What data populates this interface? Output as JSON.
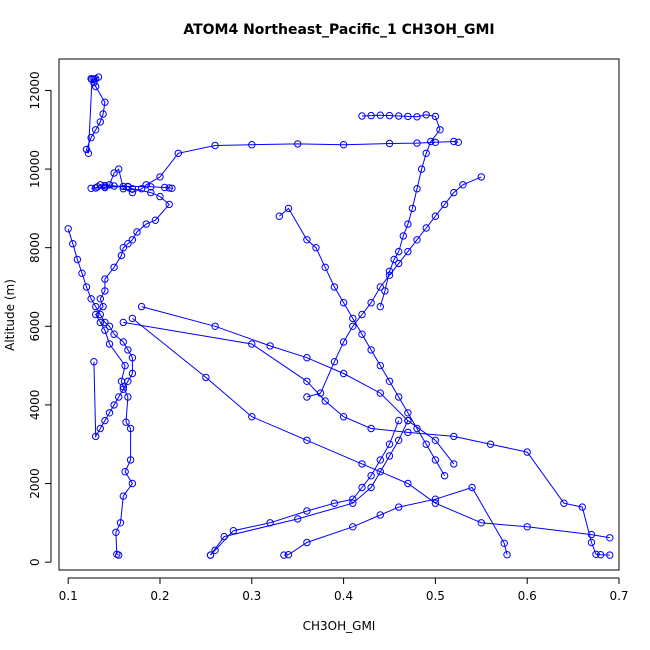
{
  "chart_data": {
    "type": "line",
    "title": "ATOM4 Northeast_Pacific_1 CH3OH_GMI",
    "xlabel": "CH3OH_GMI",
    "ylabel": "Altitude (m)",
    "xlim": [
      0.09,
      0.7
    ],
    "ylim": [
      -200,
      12800
    ],
    "x_ticks": [
      "0.1",
      "0.2",
      "0.3",
      "0.4",
      "0.5",
      "0.6",
      "0.7"
    ],
    "y_ticks": [
      "0",
      "2000",
      "4000",
      "6000",
      "8000",
      "10000",
      "12000"
    ],
    "x_tick_values": [
      0.1,
      0.2,
      0.3,
      0.4,
      0.5,
      0.6,
      0.7
    ],
    "y_tick_values": [
      0,
      2000,
      4000,
      6000,
      8000,
      10000,
      12000
    ],
    "series_color": "#0000ff",
    "series": [
      {
        "x": [
          0.155,
          0.153,
          0.152,
          0.157,
          0.16,
          0.17,
          0.162,
          0.168,
          0.168,
          0.163,
          0.165,
          0.16,
          0.158,
          0.162,
          0.145,
          0.14,
          0.135,
          0.13,
          0.138,
          0.135,
          0.14,
          0.14,
          0.15,
          0.158,
          0.16,
          0.165,
          0.17,
          0.175,
          0.185,
          0.195,
          0.21,
          0.2,
          0.19,
          0.17,
          0.165,
          0.16,
          0.15,
          0.14,
          0.135,
          0.132,
          0.13,
          0.14,
          0.165,
          0.19,
          0.205,
          0.21,
          0.213
        ],
        "y": [
          180,
          200,
          760,
          1000,
          1680,
          2000,
          2300,
          2600,
          3400,
          3560,
          4200,
          4460,
          4600,
          5000,
          5550,
          5900,
          6100,
          6300,
          6500,
          6700,
          6900,
          7200,
          7500,
          7800,
          8000,
          8100,
          8200,
          8400,
          8600,
          8700,
          9100,
          9300,
          9400,
          9500,
          9550,
          9560,
          9570,
          9580,
          9600,
          9550,
          9520,
          9540,
          9560,
          9550,
          9530,
          9520,
          9510
        ]
      },
      {
        "x": [
          0.125,
          0.13,
          0.14,
          0.145,
          0.15,
          0.155,
          0.16,
          0.17,
          0.18,
          0.185,
          0.2,
          0.22,
          0.26,
          0.3,
          0.35,
          0.4,
          0.45,
          0.48,
          0.5,
          0.52,
          0.525
        ],
        "y": [
          9510,
          9520,
          9530,
          9600,
          9900,
          10000,
          9500,
          9400,
          9500,
          9600,
          9800,
          10400,
          10600,
          10620,
          10640,
          10620,
          10650,
          10660,
          10680,
          10700,
          10680
        ]
      },
      {
        "x": [
          0.125,
          0.128,
          0.13,
          0.14,
          0.138,
          0.135,
          0.13,
          0.125,
          0.12,
          0.122,
          0.126,
          0.128,
          0.13,
          0.133
        ],
        "y": [
          12300,
          12200,
          12100,
          11700,
          11400,
          11200,
          11000,
          10800,
          10500,
          10400,
          12280,
          12290,
          12300,
          12340
        ]
      },
      {
        "x": [
          0.1,
          0.105,
          0.11,
          0.115,
          0.12,
          0.125,
          0.13,
          0.135,
          0.14,
          0.145,
          0.15,
          0.16,
          0.165,
          0.17,
          0.17,
          0.165,
          0.16,
          0.155,
          0.15,
          0.145,
          0.14,
          0.135,
          0.13,
          0.128
        ],
        "y": [
          8480,
          8100,
          7700,
          7350,
          7000,
          6700,
          6500,
          6300,
          6100,
          6000,
          5800,
          5600,
          5400,
          5200,
          4800,
          4600,
          4400,
          4200,
          4000,
          3800,
          3600,
          3400,
          3200,
          5100
        ]
      },
      {
        "x": [
          0.18,
          0.26,
          0.32,
          0.36,
          0.4,
          0.44,
          0.47,
          0.5,
          0.52
        ],
        "y": [
          6500,
          6000,
          5500,
          5200,
          4800,
          4300,
          3600,
          3100,
          2500
        ]
      },
      {
        "x": [
          0.17,
          0.25,
          0.3,
          0.36,
          0.42,
          0.47,
          0.5,
          0.55,
          0.6,
          0.67,
          0.69
        ],
        "y": [
          6200,
          4700,
          3700,
          3100,
          2500,
          2000,
          1500,
          1000,
          900,
          700,
          620
        ]
      },
      {
        "x": [
          0.16,
          0.3,
          0.36,
          0.38,
          0.4,
          0.43,
          0.47,
          0.52,
          0.56,
          0.6,
          0.64,
          0.66,
          0.67,
          0.675,
          0.68,
          0.69
        ],
        "y": [
          6100,
          5550,
          4600,
          4100,
          3700,
          3400,
          3300,
          3200,
          3000,
          2800,
          1500,
          1400,
          500,
          200,
          190,
          180
        ]
      },
      {
        "x": [
          0.255,
          0.27,
          0.35,
          0.41,
          0.43,
          0.44,
          0.45,
          0.46,
          0.47
        ],
        "y": [
          180,
          650,
          1100,
          1500,
          1900,
          2300,
          2700,
          3100,
          3600
        ]
      },
      {
        "x": [
          0.335,
          0.34,
          0.36,
          0.41,
          0.44,
          0.46,
          0.5,
          0.54,
          0.575,
          0.578
        ],
        "y": [
          180,
          190,
          500,
          900,
          1200,
          1400,
          1600,
          1900,
          480,
          190
        ]
      },
      {
        "x": [
          0.36,
          0.375,
          0.39,
          0.4,
          0.41,
          0.42,
          0.43,
          0.44,
          0.45,
          0.46,
          0.47,
          0.48,
          0.49,
          0.5,
          0.51,
          0.52,
          0.53,
          0.55
        ],
        "y": [
          4200,
          4300,
          5100,
          5600,
          6000,
          6300,
          6600,
          7000,
          7300,
          7600,
          7900,
          8200,
          8500,
          8800,
          9100,
          9400,
          9600,
          9800
        ]
      },
      {
        "x": [
          0.33,
          0.34,
          0.36,
          0.37,
          0.38,
          0.39,
          0.4,
          0.41,
          0.42,
          0.43,
          0.44,
          0.45,
          0.46,
          0.47,
          0.48,
          0.49,
          0.5,
          0.51
        ],
        "y": [
          8800,
          9000,
          8200,
          8000,
          7500,
          7000,
          6600,
          6200,
          5800,
          5400,
          5000,
          4600,
          4200,
          3800,
          3400,
          3000,
          2600,
          2200
        ]
      },
      {
        "x": [
          0.42,
          0.43,
          0.44,
          0.45,
          0.46,
          0.47,
          0.48,
          0.49,
          0.5,
          0.505,
          0.495,
          0.49,
          0.485,
          0.48,
          0.475,
          0.47,
          0.465,
          0.46,
          0.455,
          0.45,
          0.445,
          0.44
        ],
        "y": [
          11350,
          11360,
          11370,
          11360,
          11350,
          11340,
          11330,
          11380,
          11340,
          11000,
          10700,
          10400,
          10000,
          9500,
          9000,
          8600,
          8300,
          7900,
          7700,
          7400,
          6900,
          6500
        ]
      },
      {
        "x": [
          0.255,
          0.26,
          0.28,
          0.32,
          0.36,
          0.39,
          0.41,
          0.42,
          0.43,
          0.44,
          0.45,
          0.46
        ],
        "y": [
          180,
          300,
          800,
          1000,
          1300,
          1500,
          1600,
          1900,
          2200,
          2600,
          3000,
          3600
        ]
      }
    ]
  }
}
